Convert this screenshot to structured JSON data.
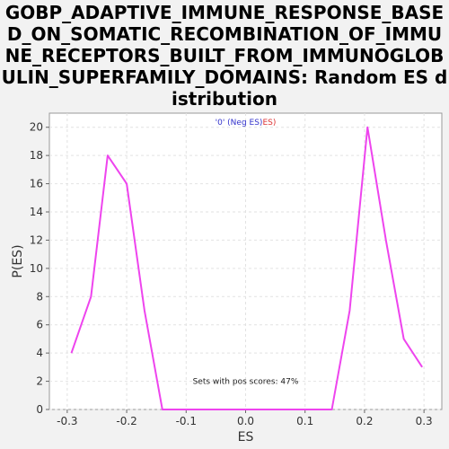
{
  "chart_data": {
    "type": "line",
    "title": "GOBP_ADAPTIVE_IMMUNE_RESPONSE_BASED_ON_SOMATIC_RECOMBINATION_OF_IMMUNE_RECEPTORS_BUILT_FROM_IMMUNOGLOBULIN_SUPERFAMILY_DOMAINS: Random ES distribution",
    "xlabel": "ES",
    "ylabel": "P(ES)",
    "xlim": [
      -0.33,
      0.33
    ],
    "ylim": [
      0,
      21
    ],
    "x_ticks": [
      -0.3,
      -0.2,
      -0.1,
      0.0,
      0.1,
      0.2,
      0.3
    ],
    "x_tick_labels": [
      "-0.3",
      "-0.2",
      "-0.1",
      "0.0",
      "0.1",
      "0.2",
      "0.3"
    ],
    "y_ticks": [
      0,
      2,
      4,
      6,
      8,
      10,
      12,
      14,
      16,
      18,
      20
    ],
    "y_tick_labels": [
      "0",
      "2",
      "4",
      "6",
      "8",
      "10",
      "12",
      "14",
      "16",
      "18",
      "20"
    ],
    "grid": true,
    "legend": {
      "placement": "top-center",
      "parts": [
        {
          "text": "'0' (Neg ES)",
          "color": "#3333cc"
        },
        {
          "text": "ES)",
          "color": "#dd3333"
        }
      ]
    },
    "annotation": "Sets with pos scores: 47%",
    "series": [
      {
        "color": "#ee44ee",
        "x": [
          -0.293,
          -0.26,
          -0.232,
          -0.2,
          -0.17,
          -0.14,
          -0.11,
          -0.08,
          -0.05,
          -0.02,
          0.01,
          0.04,
          0.07,
          0.1,
          0.145,
          0.175,
          0.205,
          0.236,
          0.266,
          0.297
        ],
        "y": [
          4,
          8,
          18,
          16,
          7,
          0,
          0,
          0,
          0,
          0,
          0,
          0,
          0,
          0,
          0,
          7,
          20,
          12,
          5,
          3
        ]
      }
    ]
  }
}
